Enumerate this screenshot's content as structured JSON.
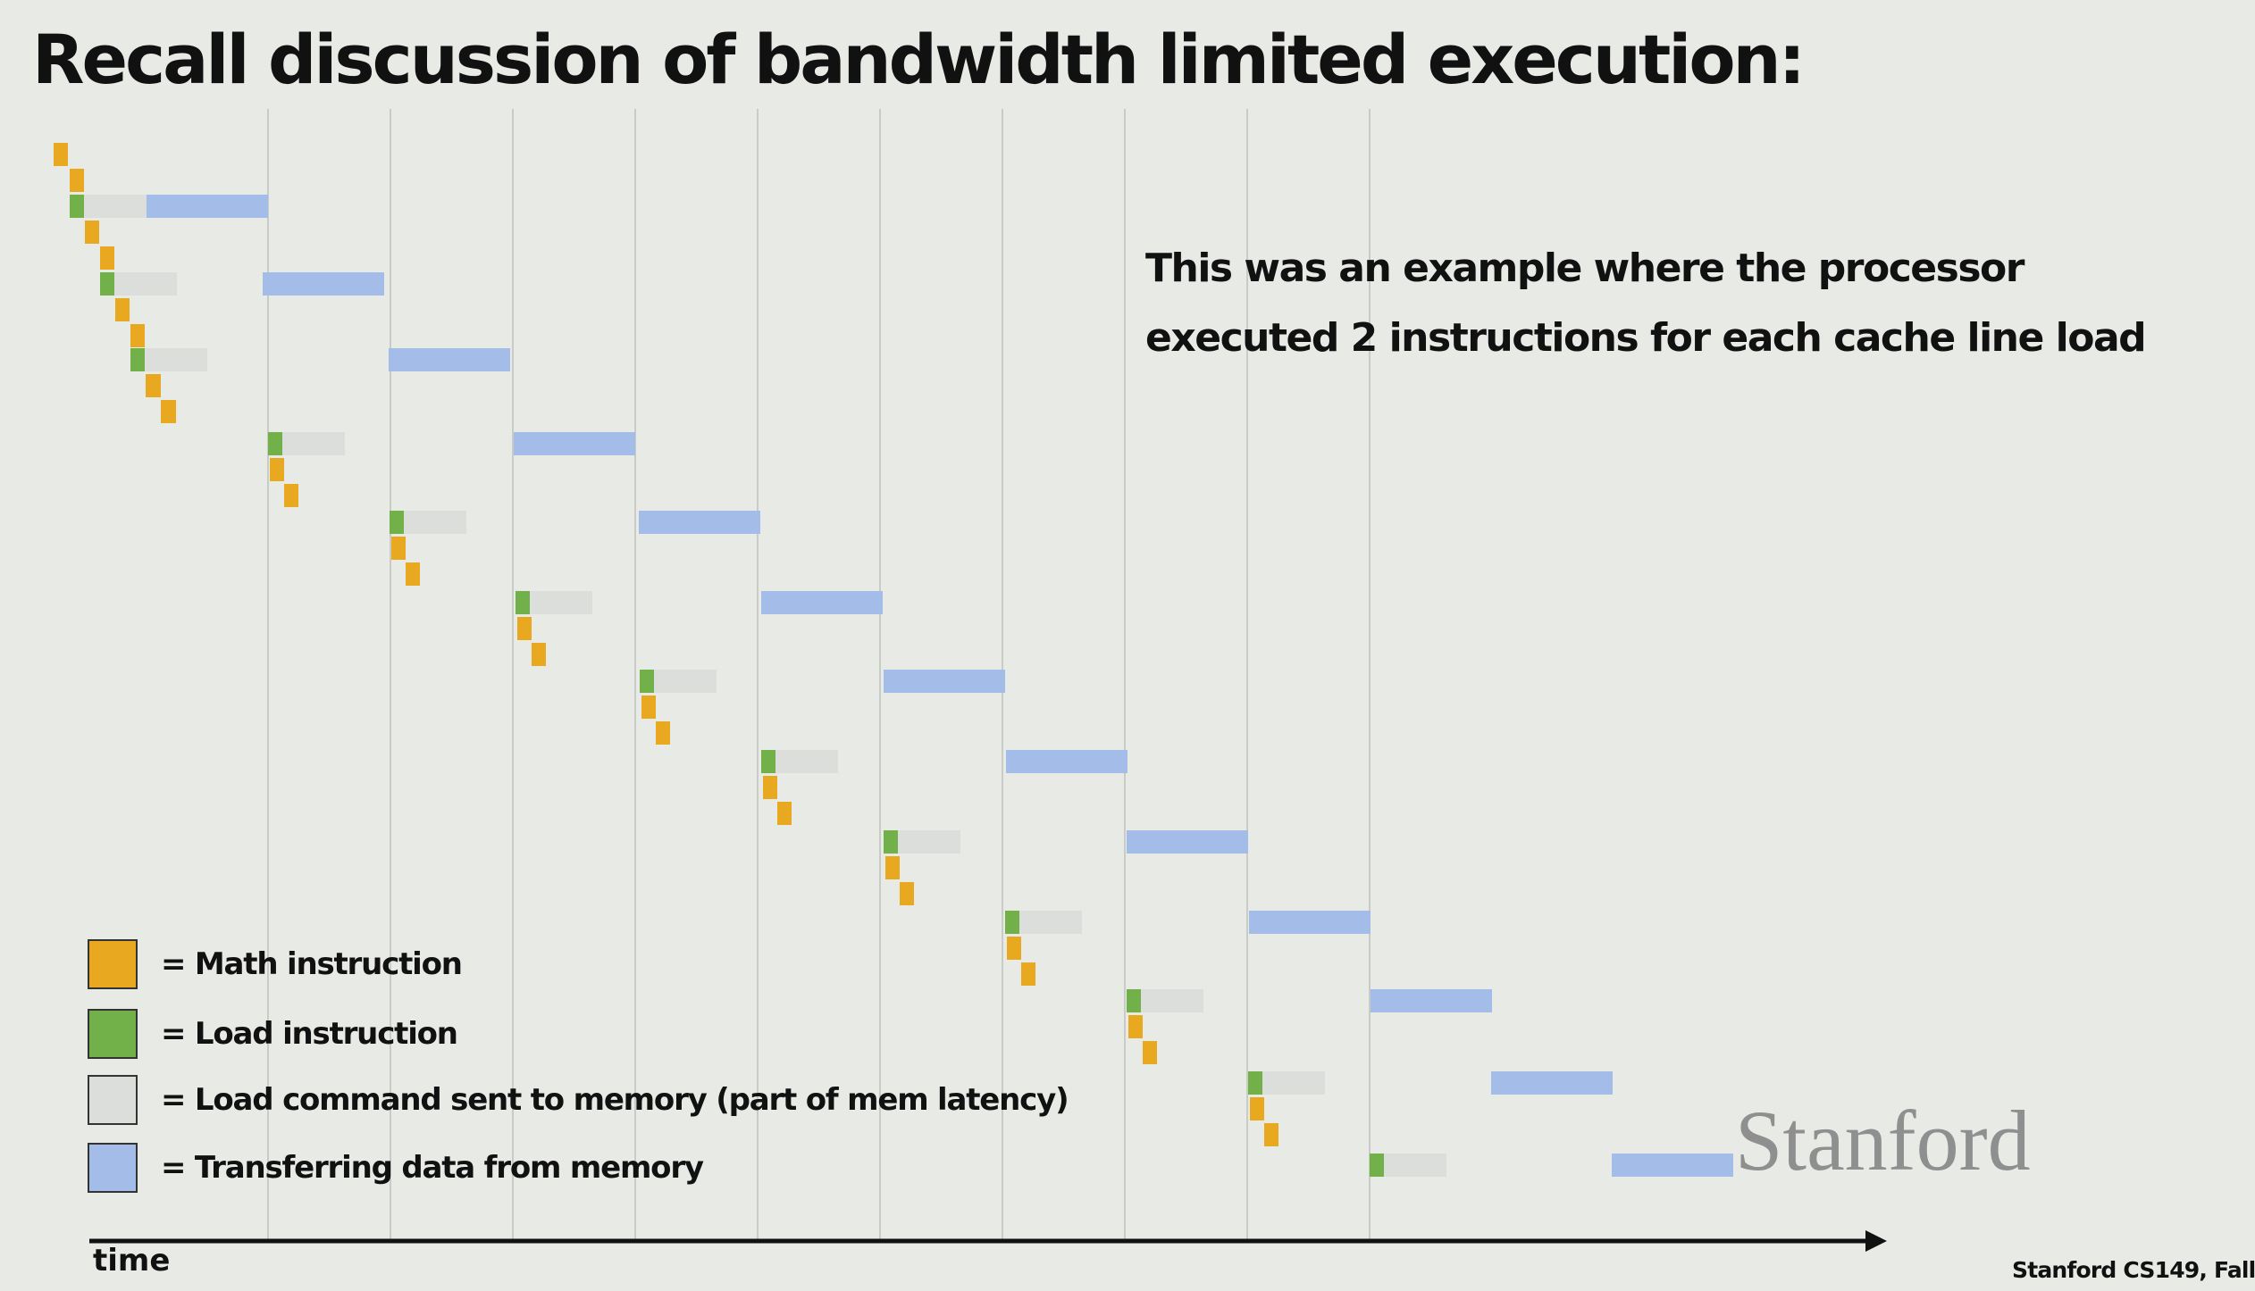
{
  "title": "Recall discussion of bandwidth limited execution:",
  "note": {
    "line1": "This was an example where the processor",
    "line2": "executed 2 instructions for each cache line load"
  },
  "legend": [
    {
      "color": "#e8a820",
      "label": "=  Math instruction"
    },
    {
      "color": "#72b04a",
      "label": "=  Load instruction"
    },
    {
      "color": "#dcdedb",
      "label": "= Load command sent to memory (part of mem latency)"
    },
    {
      "color": "#a4bce8",
      "label": "= Transferring data from memory"
    }
  ],
  "axis": {
    "label": "time"
  },
  "logo": "Stanford",
  "footer": "Stanford CS149, Fall",
  "colors": {
    "math": "#e8a820",
    "load": "#72b04a",
    "mem_command": "#dcdedb",
    "transfer": "#a4bce8",
    "gridline": "#c9cbc7",
    "axis": "#111111"
  }
}
